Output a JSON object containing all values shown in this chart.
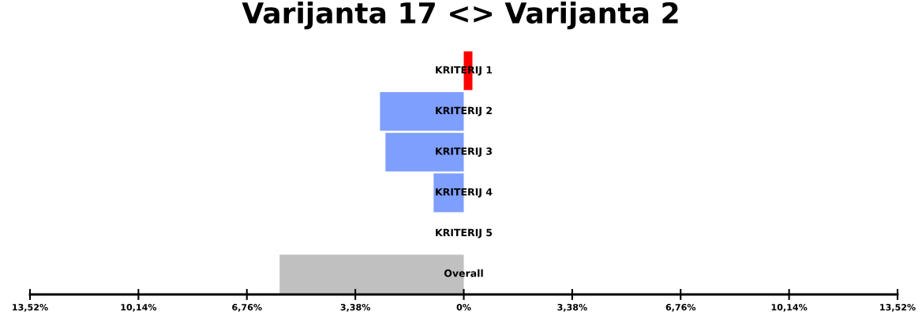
{
  "chart_data": {
    "type": "bar",
    "orientation": "horizontal",
    "title": "Varijanta 17 <> Varijanta 2",
    "categories": [
      "KRITERIJ 1",
      "KRITERIJ 2",
      "KRITERIJ 3",
      "KRITERIJ 4",
      "KRITERIJ 5",
      "Overall"
    ],
    "values": [
      0.27,
      -2.61,
      -2.44,
      -0.94,
      0,
      -5.74
    ],
    "colors": [
      "#ff0000",
      "#7f9fff",
      "#7f9fff",
      "#7f9fff",
      "#7f9fff",
      "#c0c0c0"
    ],
    "xlim": [
      -13.52,
      13.52
    ],
    "xticks": [
      {
        "value": -13.52,
        "label": "13,52%"
      },
      {
        "value": -10.14,
        "label": "10,14%"
      },
      {
        "value": -6.76,
        "label": "6,76%"
      },
      {
        "value": -3.38,
        "label": "3,38%"
      },
      {
        "value": 0,
        "label": "0%"
      },
      {
        "value": 3.38,
        "label": "3,38%"
      },
      {
        "value": 6.76,
        "label": "6,76%"
      },
      {
        "value": 10.14,
        "label": "10,14%"
      },
      {
        "value": 13.52,
        "label": "13,52%"
      }
    ],
    "grid": false,
    "legend": false
  }
}
